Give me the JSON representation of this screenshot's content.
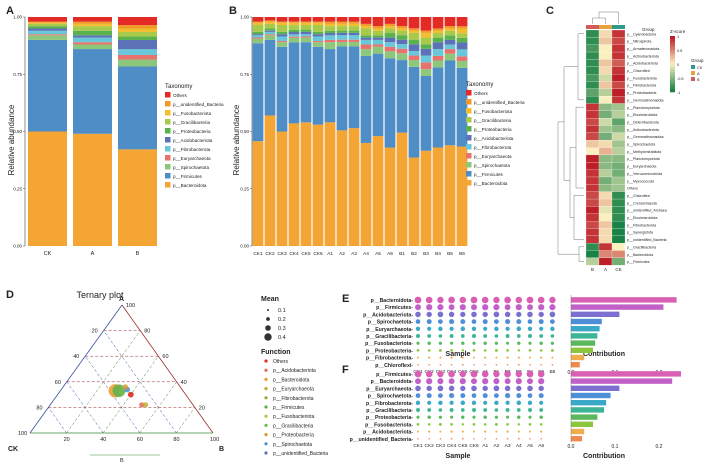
{
  "panel_labels": [
    "A",
    "B",
    "C",
    "D",
    "E",
    "F"
  ],
  "colors": {
    "Others": "#e32a24",
    "p__unidentified_Bacteria": "#f09a2a",
    "p__Fusobacteriota": "#f2bd2e",
    "p__Gracilibacteria": "#a8c94a",
    "p__Proteobacteria": "#5ab14e",
    "p__Acidobacteriota": "#5c72b7",
    "p__Fibrobacterota": "#68c7d9",
    "p__Euryarchaeota": "#e6736e",
    "p__Spirochaetota": "#8dc77b",
    "p__Firmicutes": "#4e8dc6",
    "p__Bacteroidota": "#f5a533"
  },
  "taxonomy_legend": {
    "title": "Taxonomy",
    "items": [
      "Others",
      "p__unidentified_Bacteria",
      "p__Fusobacteriota",
      "p__Gracilibacteria",
      "p__Proteobacteria",
      "p__Acidobacteriota",
      "p__Fibrobacterota",
      "p__Euryarchaeota",
      "p__Spirochaetota",
      "p__Firmicutes",
      "p__Bacteroidota"
    ]
  },
  "ternary": {
    "title": "Ternary plot",
    "vertices": [
      "A",
      "CK",
      "B"
    ],
    "ticks": [
      "20",
      "40",
      "60",
      "80",
      "100"
    ],
    "mean_legend": {
      "title": "Mean",
      "values": [
        "0.1",
        "0.2",
        "0.3",
        "0.4"
      ]
    },
    "function_legend": {
      "title": "Function",
      "items": [
        "Others",
        "p__Acidobacteriota",
        "p__Bacteroidota",
        "p__Euryarchaeota",
        "p__Fibrobacterota",
        "p__Firmicutes",
        "p__Fusobacteriota",
        "p__Gracilibacteria",
        "p__Proteobacteria",
        "p__Spirochaetota",
        "p__unidentified_Bacteria"
      ]
    }
  },
  "heatmap": {
    "group_label": "Group",
    "zscore_label": "Z-score",
    "zscore_ticks": [
      "1",
      "0.5",
      "0",
      "-0.5",
      "-1"
    ],
    "group_legend": [
      "CK",
      "A",
      "B"
    ],
    "columns": [
      "B",
      "A",
      "CK"
    ],
    "rows": [
      "p__Cyanobacteria",
      "p__Nitrospirota",
      "p__Armatimonadota",
      "p__Actinobacteriota",
      "p__Acidobacteriota",
      "p__Chloroflexi",
      "p__Fusobacteriota",
      "p__Fibrobacterota",
      "p__Proteobacteria",
      "p__Gemmatimonadota",
      "p__Planctomycetota",
      "p__Elusimicrobiota",
      "p__Deferribacterota",
      "p__Actinobacteriota",
      "p__Gemmatimonadota",
      "p__Spirochaetota",
      "p__Methylomirabilota",
      "p__Planctomycetota",
      "p__Euryarchaeota",
      "p__Verrucomicrobiota",
      "p__Myxococcota",
      "Others",
      "p__Chloroflexi",
      "p__Crenarchaeota",
      "p__unidentified_Archaea",
      "p__Elusimicrobiota",
      "p__Fibrobacterota",
      "p__Synergistota",
      "p__unidentified_Bacteria",
      "p__Gracilibacteria",
      "p__Bacteroidota",
      "p__Firmicutes"
    ]
  },
  "bubble_E": {
    "xlabel": "Sample",
    "contribution_label": "Contribution",
    "rows": [
      "p__Bacteroidota",
      "p__Firmicutes",
      "p__Acidobacteriota",
      "p__Spirochaetota",
      "p__Euryarchaeota",
      "p__Gracilibacteria",
      "p__Fusobacteriota",
      "p__Proteobacteria",
      "p__Fibrobacterota",
      "p__Chloroflexi"
    ],
    "columns": [
      "CK1",
      "CK2",
      "CK3",
      "CK4",
      "CK5",
      "CK6",
      "A1",
      "B1",
      "B2",
      "B3",
      "B4",
      "B5",
      "B6"
    ],
    "contribution": [
      0.24,
      0.21,
      0.11,
      0.07,
      0.065,
      0.06,
      0.055,
      0.05,
      0.03,
      0.02
    ],
    "contribution_ticks": [
      "0.0",
      "0.1",
      "0.2"
    ]
  },
  "bubble_F": {
    "xlabel": "Sample",
    "contribution_label": "Contribution",
    "rows": [
      "p__Firmicutes",
      "p__Bacteroidota",
      "p__Euryarchaeota",
      "p__Spirochaetota",
      "p__Fibrobacterota",
      "p__Gracilibacteria",
      "p__Proteobacteria",
      "p__Fusobacteriota",
      "p__Acidobacteriota",
      "p__unidentified_Bacteria"
    ],
    "columns": [
      "CK1",
      "CK2",
      "CK3",
      "CK4",
      "CK5",
      "CK6",
      "A1",
      "A2",
      "A3",
      "A4",
      "A5",
      "A6"
    ],
    "contribution": [
      0.25,
      0.23,
      0.11,
      0.09,
      0.08,
      0.075,
      0.06,
      0.05,
      0.03,
      0.025
    ],
    "contribution_ticks": [
      "0.0",
      "0.1",
      "0.2"
    ]
  },
  "chart_data": [
    {
      "type": "bar",
      "stacked": true,
      "panel": "A",
      "categories": [
        "CK",
        "A",
        "B"
      ],
      "ylabel": "Relative abundance",
      "ylim": [
        0,
        1
      ],
      "yticks": [
        "0.00",
        "0.25",
        "0.50",
        "0.75",
        "1.00"
      ],
      "series": [
        {
          "name": "p__Bacteroidota",
          "values": [
            0.5,
            0.49,
            0.42
          ]
        },
        {
          "name": "p__Firmicutes",
          "values": [
            0.4,
            0.37,
            0.36
          ]
        },
        {
          "name": "p__Spirochaetota",
          "values": [
            0.02,
            0.02,
            0.03
          ]
        },
        {
          "name": "p__Euryarchaeota",
          "values": [
            0.005,
            0.01,
            0.02
          ]
        },
        {
          "name": "p__Fibrobacterota",
          "values": [
            0.015,
            0.02,
            0.025
          ]
        },
        {
          "name": "p__Acidobacteriota",
          "values": [
            0.01,
            0.01,
            0.04
          ]
        },
        {
          "name": "p__Proteobacteria",
          "values": [
            0.01,
            0.02,
            0.015
          ]
        },
        {
          "name": "p__Gracilibacteria",
          "values": [
            0.01,
            0.02,
            0.02
          ]
        },
        {
          "name": "p__Fusobacteriota",
          "values": [
            0.005,
            0.01,
            0.015
          ]
        },
        {
          "name": "p__unidentified_Bacteria",
          "values": [
            0.005,
            0.01,
            0.015
          ]
        },
        {
          "name": "Others",
          "values": [
            0.02,
            0.02,
            0.035
          ]
        }
      ]
    },
    {
      "type": "bar",
      "stacked": true,
      "panel": "B",
      "categories": [
        "CK1",
        "CK2",
        "CK3",
        "CK4",
        "CK5",
        "CK6",
        "A1",
        "A2",
        "A3",
        "A4",
        "A5",
        "A6",
        "B1",
        "B2",
        "B3",
        "B4",
        "B5",
        "B6"
      ],
      "ylabel": "Relative abundance",
      "ylim": [
        0,
        1
      ],
      "yticks": [
        "0.00",
        "0.25",
        "0.50",
        "0.75",
        "1.00"
      ],
      "series": [
        {
          "name": "p__Bacteroidota",
          "values": [
            0.46,
            0.57,
            0.5,
            0.53,
            0.54,
            0.53,
            0.54,
            0.51,
            0.52,
            0.45,
            0.48,
            0.43,
            0.5,
            0.39,
            0.42,
            0.43,
            0.44,
            0.43
          ]
        },
        {
          "name": "p__Firmicutes",
          "values": [
            0.43,
            0.33,
            0.37,
            0.35,
            0.35,
            0.34,
            0.32,
            0.37,
            0.36,
            0.38,
            0.36,
            0.39,
            0.32,
            0.4,
            0.33,
            0.35,
            0.37,
            0.34
          ]
        },
        {
          "name": "p__Spirochaetota",
          "values": [
            0.02,
            0.02,
            0.02,
            0.02,
            0.02,
            0.02,
            0.03,
            0.02,
            0.02,
            0.03,
            0.03,
            0.03,
            0.03,
            0.03,
            0.03,
            0.03,
            0.03,
            0.03
          ]
        },
        {
          "name": "p__Euryarchaeota",
          "values": [
            0.005,
            0.005,
            0.005,
            0.005,
            0.005,
            0.005,
            0.01,
            0.01,
            0.01,
            0.02,
            0.01,
            0.02,
            0.02,
            0.02,
            0.03,
            0.02,
            0.02,
            0.02
          ]
        },
        {
          "name": "p__Fibrobacterota",
          "values": [
            0.01,
            0.01,
            0.02,
            0.01,
            0.01,
            0.02,
            0.02,
            0.02,
            0.02,
            0.02,
            0.02,
            0.02,
            0.02,
            0.02,
            0.03,
            0.03,
            0.02,
            0.03
          ]
        },
        {
          "name": "p__Acidobacteriota",
          "values": [
            0.005,
            0.005,
            0.01,
            0.01,
            0.01,
            0.01,
            0.01,
            0.01,
            0.01,
            0.01,
            0.01,
            0.02,
            0.02,
            0.03,
            0.03,
            0.03,
            0.02,
            0.03
          ]
        },
        {
          "name": "p__Proteobacteria",
          "values": [
            0.01,
            0.01,
            0.01,
            0.01,
            0.01,
            0.01,
            0.01,
            0.01,
            0.01,
            0.01,
            0.01,
            0.02,
            0.02,
            0.02,
            0.02,
            0.02,
            0.02,
            0.02
          ]
        },
        {
          "name": "p__Gracilibacteria",
          "values": [
            0.03,
            0.02,
            0.03,
            0.02,
            0.02,
            0.03,
            0.02,
            0.02,
            0.02,
            0.03,
            0.02,
            0.02,
            0.02,
            0.03,
            0.03,
            0.02,
            0.02,
            0.02
          ]
        },
        {
          "name": "p__Fusobacteriota",
          "values": [
            0.01,
            0.01,
            0.01,
            0.01,
            0.01,
            0.01,
            0.01,
            0.01,
            0.01,
            0.01,
            0.01,
            0.01,
            0.01,
            0.01,
            0.02,
            0.01,
            0.01,
            0.02
          ]
        },
        {
          "name": "p__unidentified_Bacteria",
          "values": [
            0.005,
            0.005,
            0.005,
            0.005,
            0.005,
            0.005,
            0.01,
            0.01,
            0.01,
            0.01,
            0.01,
            0.01,
            0.01,
            0.01,
            0.01,
            0.01,
            0.01,
            0.01
          ]
        },
        {
          "name": "Others",
          "values": [
            0.02,
            0.015,
            0.02,
            0.02,
            0.02,
            0.02,
            0.02,
            0.02,
            0.02,
            0.03,
            0.04,
            0.03,
            0.04,
            0.05,
            0.06,
            0.05,
            0.04,
            0.04
          ]
        }
      ]
    },
    {
      "type": "heatmap",
      "panel": "C",
      "note": "z-scores per row across groups B, A, CK",
      "values": [
        [
          -0.9,
          0.1,
          0.9
        ],
        [
          -0.9,
          0.2,
          0.8
        ],
        [
          -0.8,
          0.0,
          0.9
        ],
        [
          -0.9,
          0.0,
          0.9
        ],
        [
          -0.9,
          0.2,
          0.7
        ],
        [
          -0.9,
          0.1,
          0.9
        ],
        [
          -0.8,
          -0.2,
          1.0
        ],
        [
          -0.9,
          0.2,
          0.8
        ],
        [
          -0.7,
          -0.3,
          1.0
        ],
        [
          -0.9,
          0.0,
          0.9
        ],
        [
          0.9,
          -0.5,
          -0.4
        ],
        [
          0.9,
          -0.6,
          -0.3
        ],
        [
          0.8,
          -0.2,
          -0.7
        ],
        [
          0.9,
          -0.4,
          -0.5
        ],
        [
          0.8,
          -0.6,
          -0.2
        ],
        [
          0.2,
          0.1,
          -0.4
        ],
        [
          0.0,
          0.3,
          -0.3
        ],
        [
          1.0,
          -0.5,
          -0.5
        ],
        [
          1.0,
          -0.5,
          -0.6
        ],
        [
          0.9,
          -0.3,
          -0.6
        ],
        [
          0.9,
          -0.6,
          -0.4
        ],
        [
          0.9,
          -0.5,
          -0.4
        ],
        [
          0.8,
          0.1,
          -0.9
        ],
        [
          0.8,
          0.2,
          -0.9
        ],
        [
          1.0,
          -0.1,
          -0.9
        ],
        [
          0.9,
          0.0,
          -0.9
        ],
        [
          0.8,
          0.2,
          -1.0
        ],
        [
          0.9,
          0.1,
          -1.0
        ],
        [
          0.9,
          0.1,
          -1.0
        ],
        [
          -0.9,
          0.9,
          0.0
        ],
        [
          -1.0,
          0.5,
          0.5
        ],
        [
          -0.3,
          1.0,
          -0.6
        ]
      ]
    },
    {
      "type": "scatter",
      "panel": "D",
      "subtype": "ternary",
      "points": [
        {
          "name": "p__Bacteroidota",
          "A": 0.33,
          "B": 0.3,
          "CK": 0.37,
          "mean": 0.42
        },
        {
          "name": "p__Firmicutes",
          "A": 0.33,
          "B": 0.32,
          "CK": 0.35,
          "mean": 0.38
        },
        {
          "name": "p__Acidobacteriota",
          "A": 0.22,
          "B": 0.5,
          "CK": 0.28,
          "mean": 0.02
        },
        {
          "name": "p__Spirochaetota",
          "A": 0.34,
          "B": 0.36,
          "CK": 0.3,
          "mean": 0.03
        },
        {
          "name": "p__Fusobacteriota",
          "A": 0.3,
          "B": 0.4,
          "CK": 0.3,
          "mean": 0.02
        },
        {
          "name": "p__Proteobacteria",
          "A": 0.36,
          "B": 0.34,
          "CK": 0.3,
          "mean": 0.02
        },
        {
          "name": "p__Gracilibacteria",
          "A": 0.32,
          "B": 0.34,
          "CK": 0.34,
          "mean": 0.03
        },
        {
          "name": "p__Euryarchaeota",
          "A": 0.22,
          "B": 0.52,
          "CK": 0.26,
          "mean": 0.02
        },
        {
          "name": "Others",
          "A": 0.3,
          "B": 0.4,
          "CK": 0.3,
          "mean": 0.03
        }
      ]
    }
  ]
}
